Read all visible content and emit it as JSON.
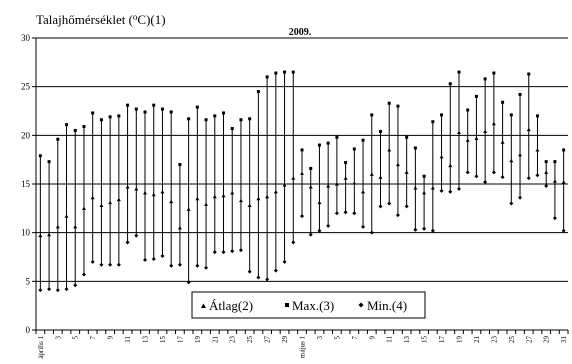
{
  "chart_data": {
    "type": "scatter",
    "title": "2009.",
    "ylabel_parts": [
      "Talajhőmérséklet (",
      "o",
      "C)(1)"
    ],
    "ylim": [
      0,
      30
    ],
    "yticks": [
      0,
      5,
      10,
      15,
      20,
      25,
      30
    ],
    "grid": true,
    "legend_position": "bottom-center",
    "x_tick_labels": [
      "április 1",
      "3",
      "5",
      "7",
      "9",
      "11",
      "13",
      "15",
      "17",
      "19",
      "21",
      "23",
      "25",
      "27",
      "29",
      "május 1",
      "3",
      "5",
      "7",
      "9",
      "11",
      "13",
      "15",
      "17",
      "19",
      "21",
      "23",
      "25",
      "27",
      "29",
      "31"
    ],
    "x": [
      "április 1",
      "2",
      "3",
      "4",
      "5",
      "6",
      "7",
      "8",
      "9",
      "10",
      "11",
      "12",
      "13",
      "14",
      "15",
      "16",
      "17",
      "18",
      "19",
      "20",
      "21",
      "22",
      "23",
      "24",
      "25",
      "26",
      "27",
      "28",
      "29",
      "30",
      "május 1",
      "2",
      "3",
      "4",
      "5",
      "6",
      "7",
      "8",
      "9",
      "10",
      "11",
      "12",
      "13",
      "14",
      "15",
      "16",
      "17",
      "18",
      "19",
      "20",
      "21",
      "22",
      "23",
      "24",
      "25",
      "26",
      "27",
      "28",
      "29",
      "30",
      "31"
    ],
    "series": [
      {
        "name": "Átlag(2)",
        "marker": "triangle",
        "values": [
          9.7,
          9.8,
          10.6,
          11.7,
          10.6,
          12.5,
          13.6,
          12.8,
          13.1,
          13.4,
          14.7,
          14.5,
          14.1,
          13.9,
          14.2,
          13.2,
          10.5,
          12.4,
          13.5,
          12.9,
          13.7,
          13.8,
          14.1,
          13.3,
          12.8,
          13.5,
          13.7,
          14.2,
          14.9,
          15.6,
          16.1,
          14.7,
          13.1,
          14.8,
          15.0,
          15.6,
          15.1,
          14.2,
          16.0,
          15.7,
          18.5,
          17.0,
          16.2,
          14.6,
          14.1,
          14.6,
          17.8,
          16.9,
          20.3,
          19.5,
          19.7,
          20.4,
          21.2,
          19.3,
          17.4,
          18.0,
          20.6,
          18.5,
          16.2,
          15.3,
          15.2
        ]
      },
      {
        "name": "Max.(3)",
        "marker": "square",
        "values": [
          17.9,
          17.3,
          19.6,
          21.1,
          20.5,
          20.9,
          22.3,
          21.6,
          21.9,
          22.0,
          23.1,
          22.7,
          22.4,
          23.1,
          22.7,
          22.4,
          17.0,
          21.7,
          22.9,
          21.6,
          22.0,
          22.3,
          20.7,
          21.6,
          21.7,
          24.5,
          26.0,
          26.4,
          26.5,
          26.5,
          18.5,
          16.6,
          19.0,
          19.2,
          19.8,
          17.2,
          18.6,
          19.5,
          22.1,
          20.4,
          23.3,
          23.0,
          19.8,
          18.7,
          15.8,
          21.4,
          22.1,
          25.3,
          26.5,
          22.6,
          24.0,
          25.8,
          26.4,
          23.4,
          22.1,
          24.2,
          26.3,
          22.0,
          17.3,
          17.3,
          18.5
        ]
      },
      {
        "name": "Min.(4)",
        "marker": "diamond",
        "values": [
          4.1,
          4.2,
          4.1,
          4.2,
          4.6,
          5.7,
          7.0,
          6.7,
          6.7,
          6.7,
          9.0,
          9.7,
          7.2,
          7.3,
          7.6,
          6.6,
          6.7,
          4.9,
          6.6,
          6.4,
          8.0,
          8.0,
          8.1,
          8.2,
          6.0,
          5.4,
          5.2,
          6.1,
          7.0,
          9.0,
          11.7,
          9.8,
          10.2,
          10.7,
          12.0,
          12.1,
          12.0,
          10.6,
          10.0,
          12.7,
          13.0,
          11.8,
          12.7,
          10.3,
          10.4,
          10.2,
          14.3,
          14.2,
          14.5,
          16.2,
          15.8,
          15.2,
          16.2,
          15.7,
          13.0,
          13.6,
          15.6,
          15.9,
          14.8,
          11.5,
          10.2
        ]
      }
    ]
  }
}
